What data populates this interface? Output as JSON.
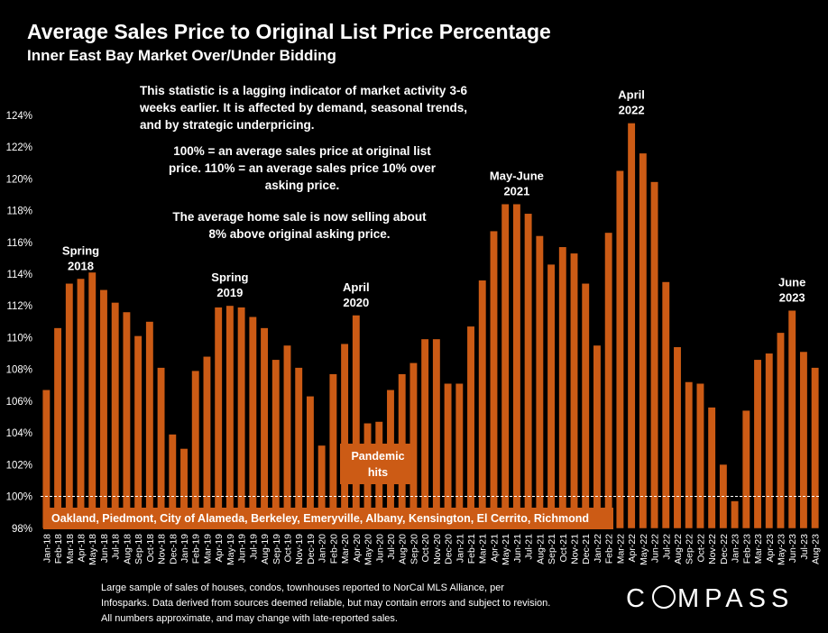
{
  "header": {
    "title": "Average Sales Price to Original List Price Percentage",
    "subtitle": "Inner East Bay Market Over/Under Bidding"
  },
  "notes": {
    "lagging": "This statistic is a lagging indicator of market activity 3-6 weeks earlier. It is affected by demand, seasonal trends, and by strategic underpricing.",
    "definition": "100% = an average sales price at original list price. 110% = an average sales price 10% over asking price.",
    "current": "The average home sale is now selling about 8% above original asking price."
  },
  "region_label": "Oakland, Piedmont, City of Alameda, Berkeley, Emeryville, Albany, Kensington, El Cerrito, Richmond",
  "pandemic_label": "Pandemic hits",
  "footnote": "Large sample of sales of houses, condos, townhouses reported to NorCal MLS Alliance, per Infosparks. Data derived from sources deemed reliable, but may contain errors and subject to revision. All numbers approximate, and may change with late-reported sales.",
  "logo": {
    "before": "C",
    "after": "MPASS"
  },
  "colors": {
    "bar": "#cc5b15",
    "background": "#000000",
    "text": "#ffffff",
    "gridline": "#ffffff"
  },
  "chart_data": {
    "type": "bar",
    "ylim": [
      98,
      125
    ],
    "yticks": [
      98,
      100,
      102,
      104,
      106,
      108,
      110,
      112,
      114,
      116,
      118,
      120,
      122,
      124
    ],
    "ytick_labels": [
      "98%",
      "100%",
      "102%",
      "104%",
      "106%",
      "108%",
      "110%",
      "112%",
      "114%",
      "116%",
      "118%",
      "120%",
      "122%",
      "124%"
    ],
    "reference_line": 100,
    "categories": [
      "Jan-18",
      "Feb-18",
      "Mar-18",
      "Apr-18",
      "May-18",
      "Jun-18",
      "Jul-18",
      "Aug-18",
      "Sep-18",
      "Oct-18",
      "Nov-18",
      "Dec-18",
      "Jan-19",
      "Feb-19",
      "Mar-19",
      "Apr-19",
      "May-19",
      "Jun-19",
      "Jul-19",
      "Aug-19",
      "Sep-19",
      "Oct-19",
      "Nov-19",
      "Dec-19",
      "Jan-20",
      "Feb-20",
      "Mar-20",
      "Apr-20",
      "May-20",
      "Jun-20",
      "Jul-20",
      "Aug-20",
      "Sep-20",
      "Oct-20",
      "Nov-20",
      "Dec-20",
      "Jan-21",
      "Feb-21",
      "Mar-21",
      "Apr-21",
      "May-21",
      "Jun-21",
      "Jul-21",
      "Aug-21",
      "Sep-21",
      "Oct-21",
      "Nov-21",
      "Dec-21",
      "Jan-22",
      "Feb-22",
      "Mar-22",
      "Apr-22",
      "May-22",
      "Jun-22",
      "Jul-22",
      "Aug-22",
      "Sep-22",
      "Oct-22",
      "Nov-22",
      "Dec-22",
      "Jan-23",
      "Feb-23",
      "Mar-23",
      "Apr-23",
      "May-23",
      "Jun-23",
      "Jul-23",
      "Aug-23"
    ],
    "values": [
      106.7,
      110.6,
      113.4,
      113.7,
      114.1,
      113.0,
      112.2,
      111.6,
      110.1,
      111.0,
      108.1,
      103.9,
      103.0,
      107.9,
      108.8,
      111.9,
      112.0,
      111.9,
      111.3,
      110.6,
      108.6,
      109.5,
      108.1,
      106.3,
      103.2,
      107.7,
      109.6,
      111.4,
      104.6,
      104.7,
      106.7,
      107.7,
      108.4,
      109.9,
      109.9,
      107.1,
      107.1,
      110.7,
      113.6,
      116.7,
      118.4,
      118.4,
      117.8,
      116.4,
      114.6,
      115.7,
      115.3,
      113.4,
      109.5,
      116.6,
      120.5,
      123.5,
      121.6,
      119.8,
      113.5,
      109.4,
      107.2,
      107.1,
      105.6,
      102.0,
      99.7,
      105.4,
      108.6,
      109.0,
      110.3,
      111.7,
      109.1,
      108.1
    ],
    "annotations": [
      {
        "label": "Spring 2018",
        "category": "Apr-18"
      },
      {
        "label": "Spring 2019",
        "category": "May-19"
      },
      {
        "label": "April 2020",
        "category": "Apr-20"
      },
      {
        "label": "May-June 2021",
        "category": "Jun-21"
      },
      {
        "label": "April 2022",
        "category": "Apr-22"
      },
      {
        "label": "June 2023",
        "category": "Jun-23"
      }
    ]
  }
}
